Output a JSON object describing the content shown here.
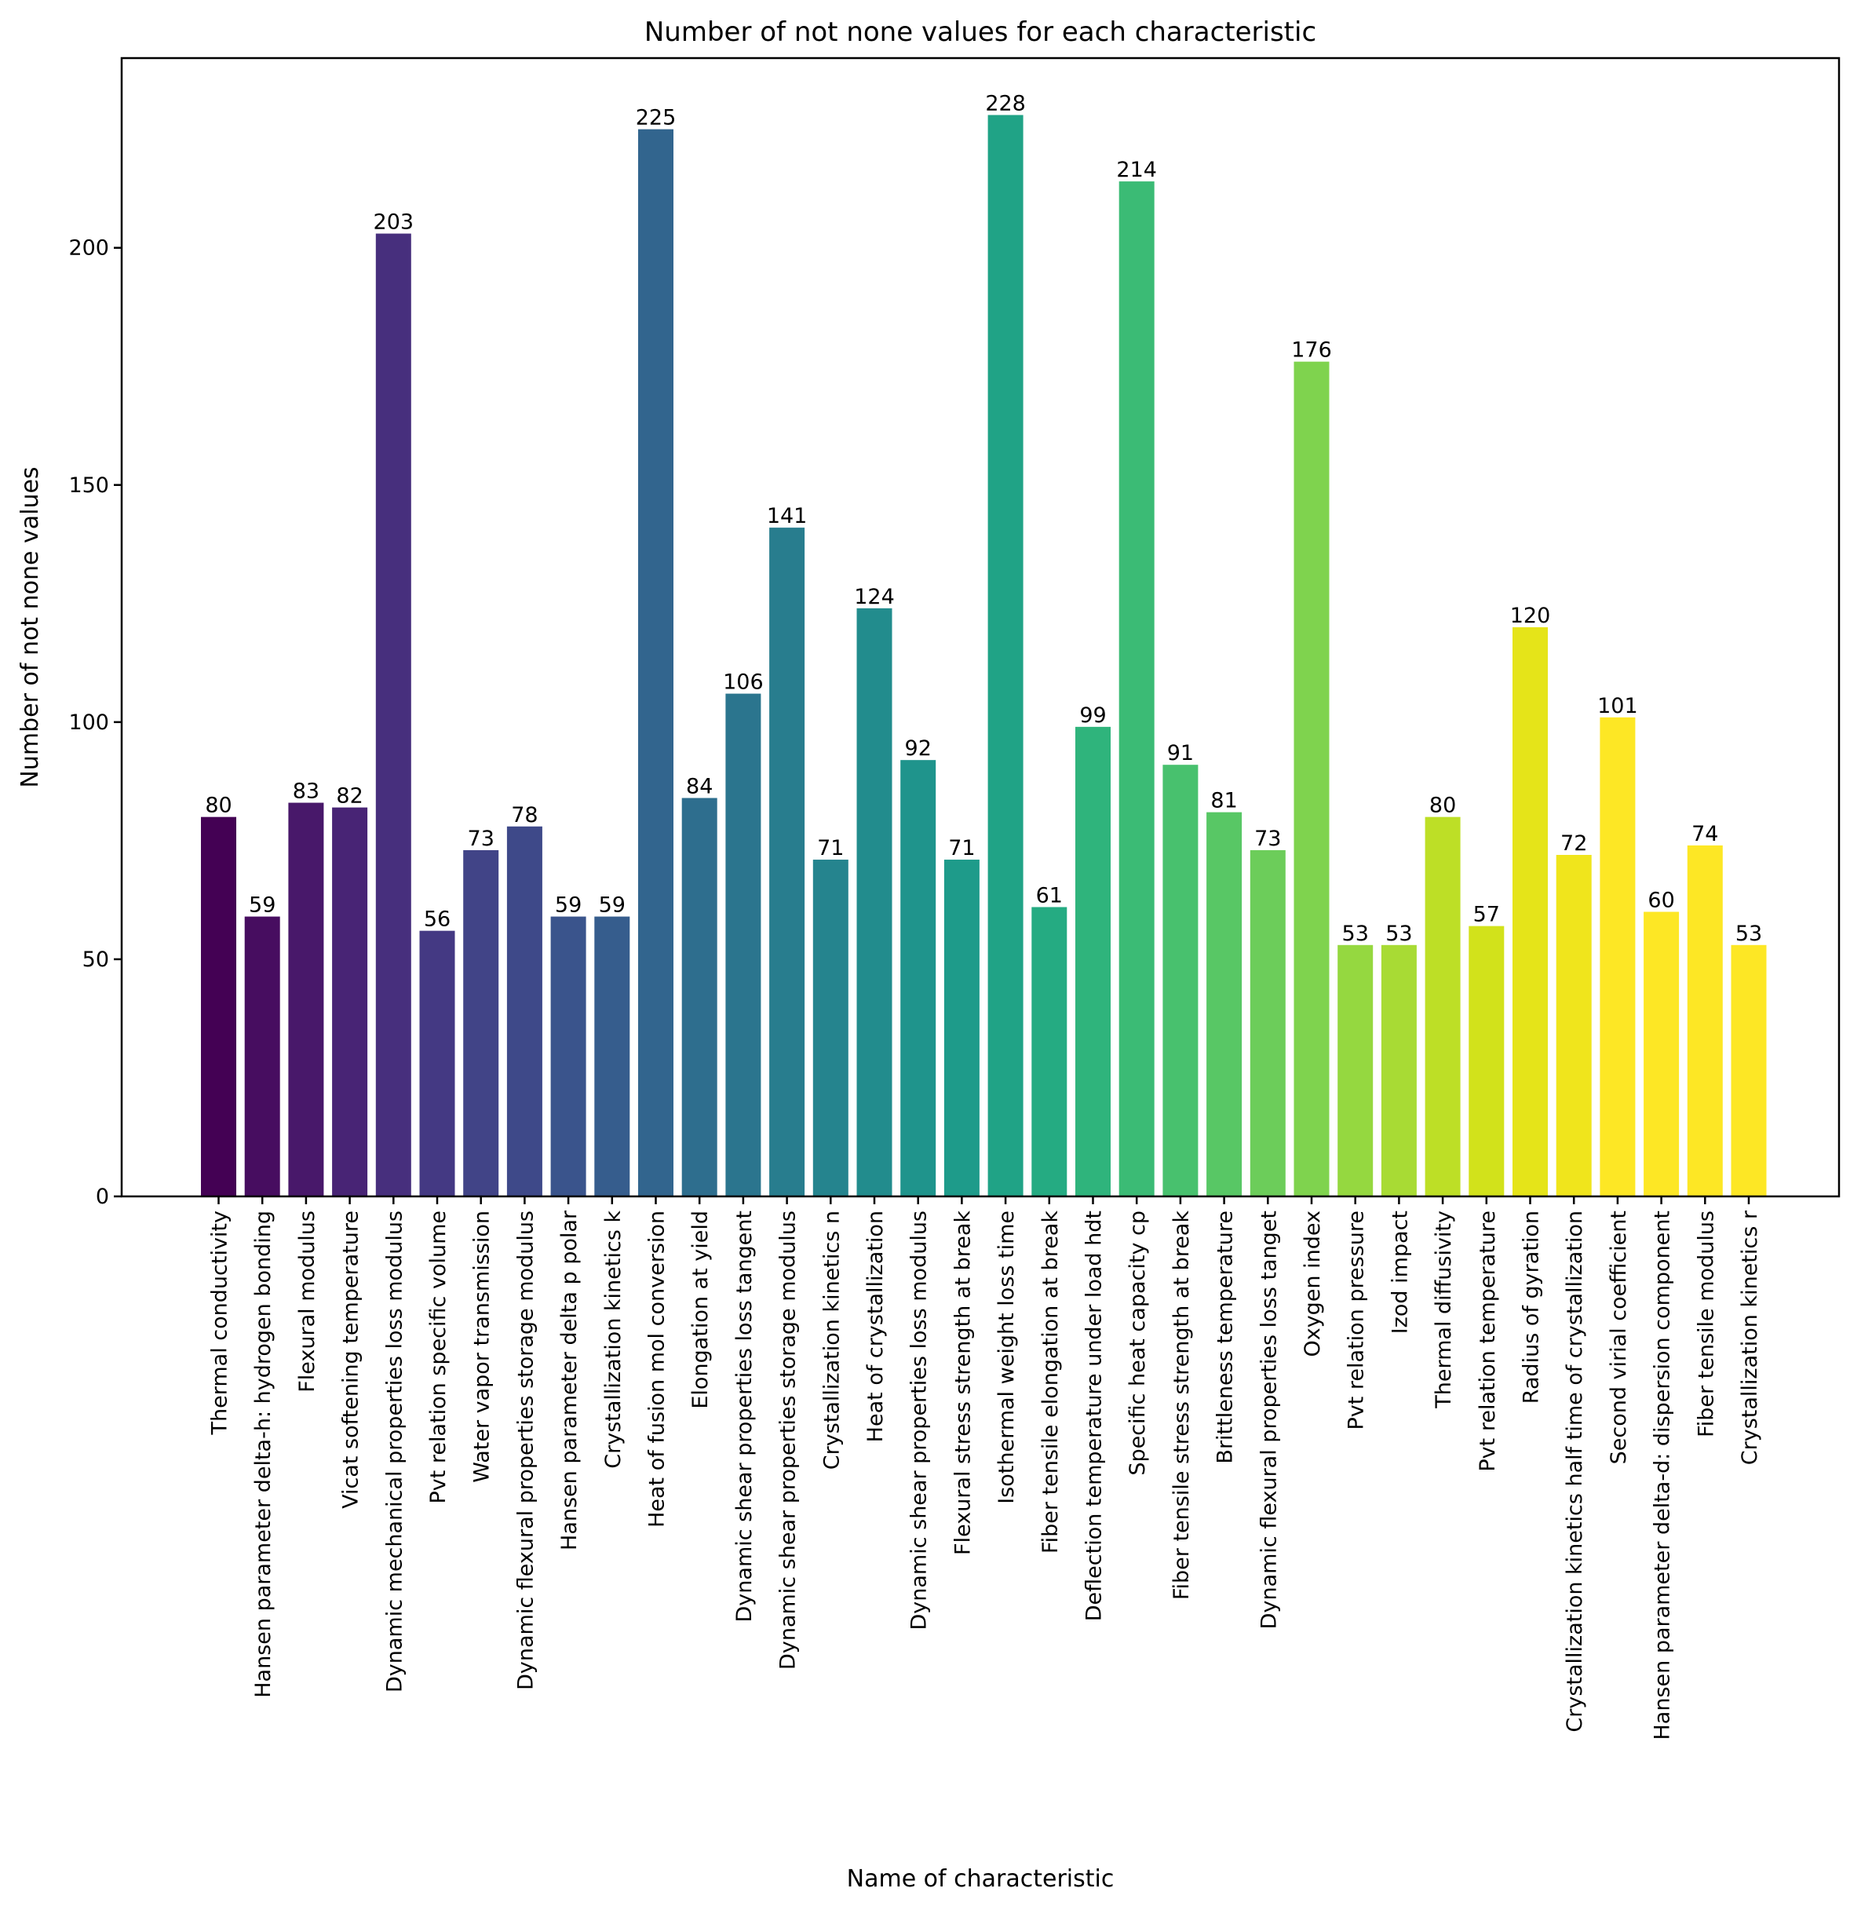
{
  "chart_data": {
    "type": "bar",
    "title": "Number of not none values for each characteristic",
    "xlabel": "Name of characteristic",
    "ylabel": "Number of not none values",
    "ylim": [
      0,
      240
    ],
    "yticks": [
      0,
      50,
      100,
      150,
      200
    ],
    "grid": false,
    "colormap": "viridis",
    "categories": [
      "Thermal conductivity",
      "Hansen parameter delta-h: hydrogen bonding",
      "Flexural modulus",
      "Vicat softening temperature",
      "Dynamic mechanical properties loss modulus",
      "Pvt relation specific volume",
      "Water vapor transmission",
      "Dynamic flexural properties storage modulus",
      "Hansen parameter delta p polar",
      "Crystallization kinetics k",
      "Heat of fusion mol conversion",
      "Elongation at yield",
      "Dynamic shear properties loss tangent",
      "Dynamic shear properties storage modulus",
      "Crystallization kinetics n",
      "Heat of crystallization",
      "Dynamic shear properties loss modulus",
      "Flexural stress strength at break",
      "Isothermal weight loss time",
      "Fiber tensile elongation at break",
      "Deflection temperature under load hdt",
      "Specific heat capacity cp",
      "Fiber tensile stress strength at break",
      "Brittleness temperature",
      "Dynamic flexural properties loss tanget",
      "Oxygen index",
      "Pvt relation pressure",
      "Izod impact",
      "Thermal diffusivity",
      "Pvt relation temperature",
      "Radius of gyration",
      "Crystallization kinetics half time of crystallization",
      "Second virial coefficient",
      "Hansen parameter delta-d: dispersion component",
      "Fiber tensile modulus",
      "Crystallization kinetics r"
    ],
    "values": [
      80,
      59,
      83,
      82,
      203,
      56,
      73,
      78,
      59,
      59,
      225,
      84,
      106,
      141,
      71,
      124,
      92,
      71,
      228,
      61,
      99,
      214,
      91,
      81,
      73,
      176,
      53,
      53,
      80,
      57,
      120,
      72,
      101,
      60,
      74,
      53
    ],
    "colors": [
      "#440154",
      "#470d60",
      "#48186a",
      "#482475",
      "#472f7d",
      "#443983",
      "#414487",
      "#3e4989",
      "#3a548c",
      "#365d8d",
      "#32658e",
      "#2e6e8e",
      "#2b758e",
      "#287d8e",
      "#25848e",
      "#228c8d",
      "#1f948c",
      "#1e9b8a",
      "#20a386",
      "#25ab82",
      "#2fb47c",
      "#3bbb75",
      "#48c16e",
      "#58c765",
      "#6ccd5a",
      "#7fd34e",
      "#95d840",
      "#a8db34",
      "#bddf26",
      "#d2e21b",
      "#e5e419",
      "#f0e51c",
      "#fde725",
      "#fde725",
      "#fde725",
      "#fde725"
    ]
  }
}
